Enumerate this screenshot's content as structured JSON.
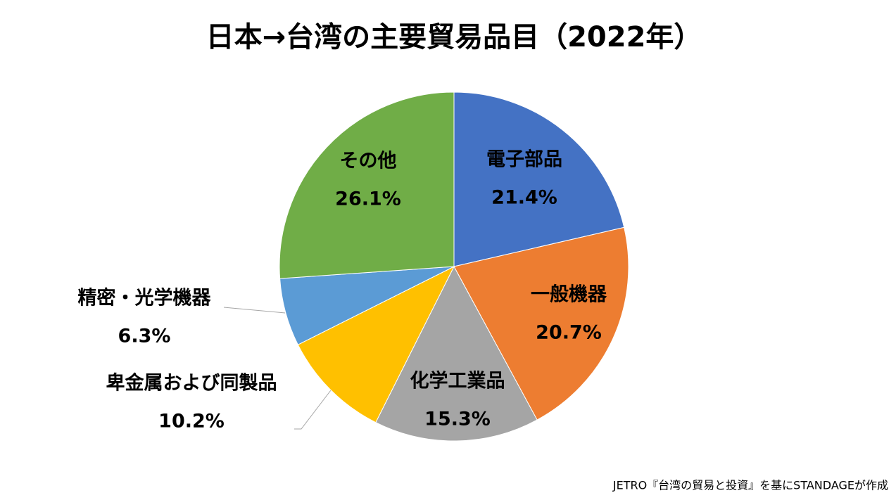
{
  "chart_data": {
    "type": "pie",
    "title": "日本→台湾の主要貿易品目（2022年）",
    "categories": [
      "電子部品",
      "一般機器",
      "化学工業品",
      "卑金属および同製品",
      "精密・光学機器",
      "その他"
    ],
    "values": [
      21.4,
      20.7,
      15.3,
      10.2,
      6.3,
      26.1
    ],
    "value_labels": [
      "21.4%",
      "20.7%",
      "15.3%",
      "10.2%",
      "6.3%",
      "26.1%"
    ],
    "colors": [
      "#4472c4",
      "#ed7d31",
      "#a5a5a5",
      "#ffc000",
      "#5b9bd5",
      "#70ad47"
    ],
    "source": "JETRO『台湾の貿易と投資』を基にSTANDAGEが作成"
  }
}
